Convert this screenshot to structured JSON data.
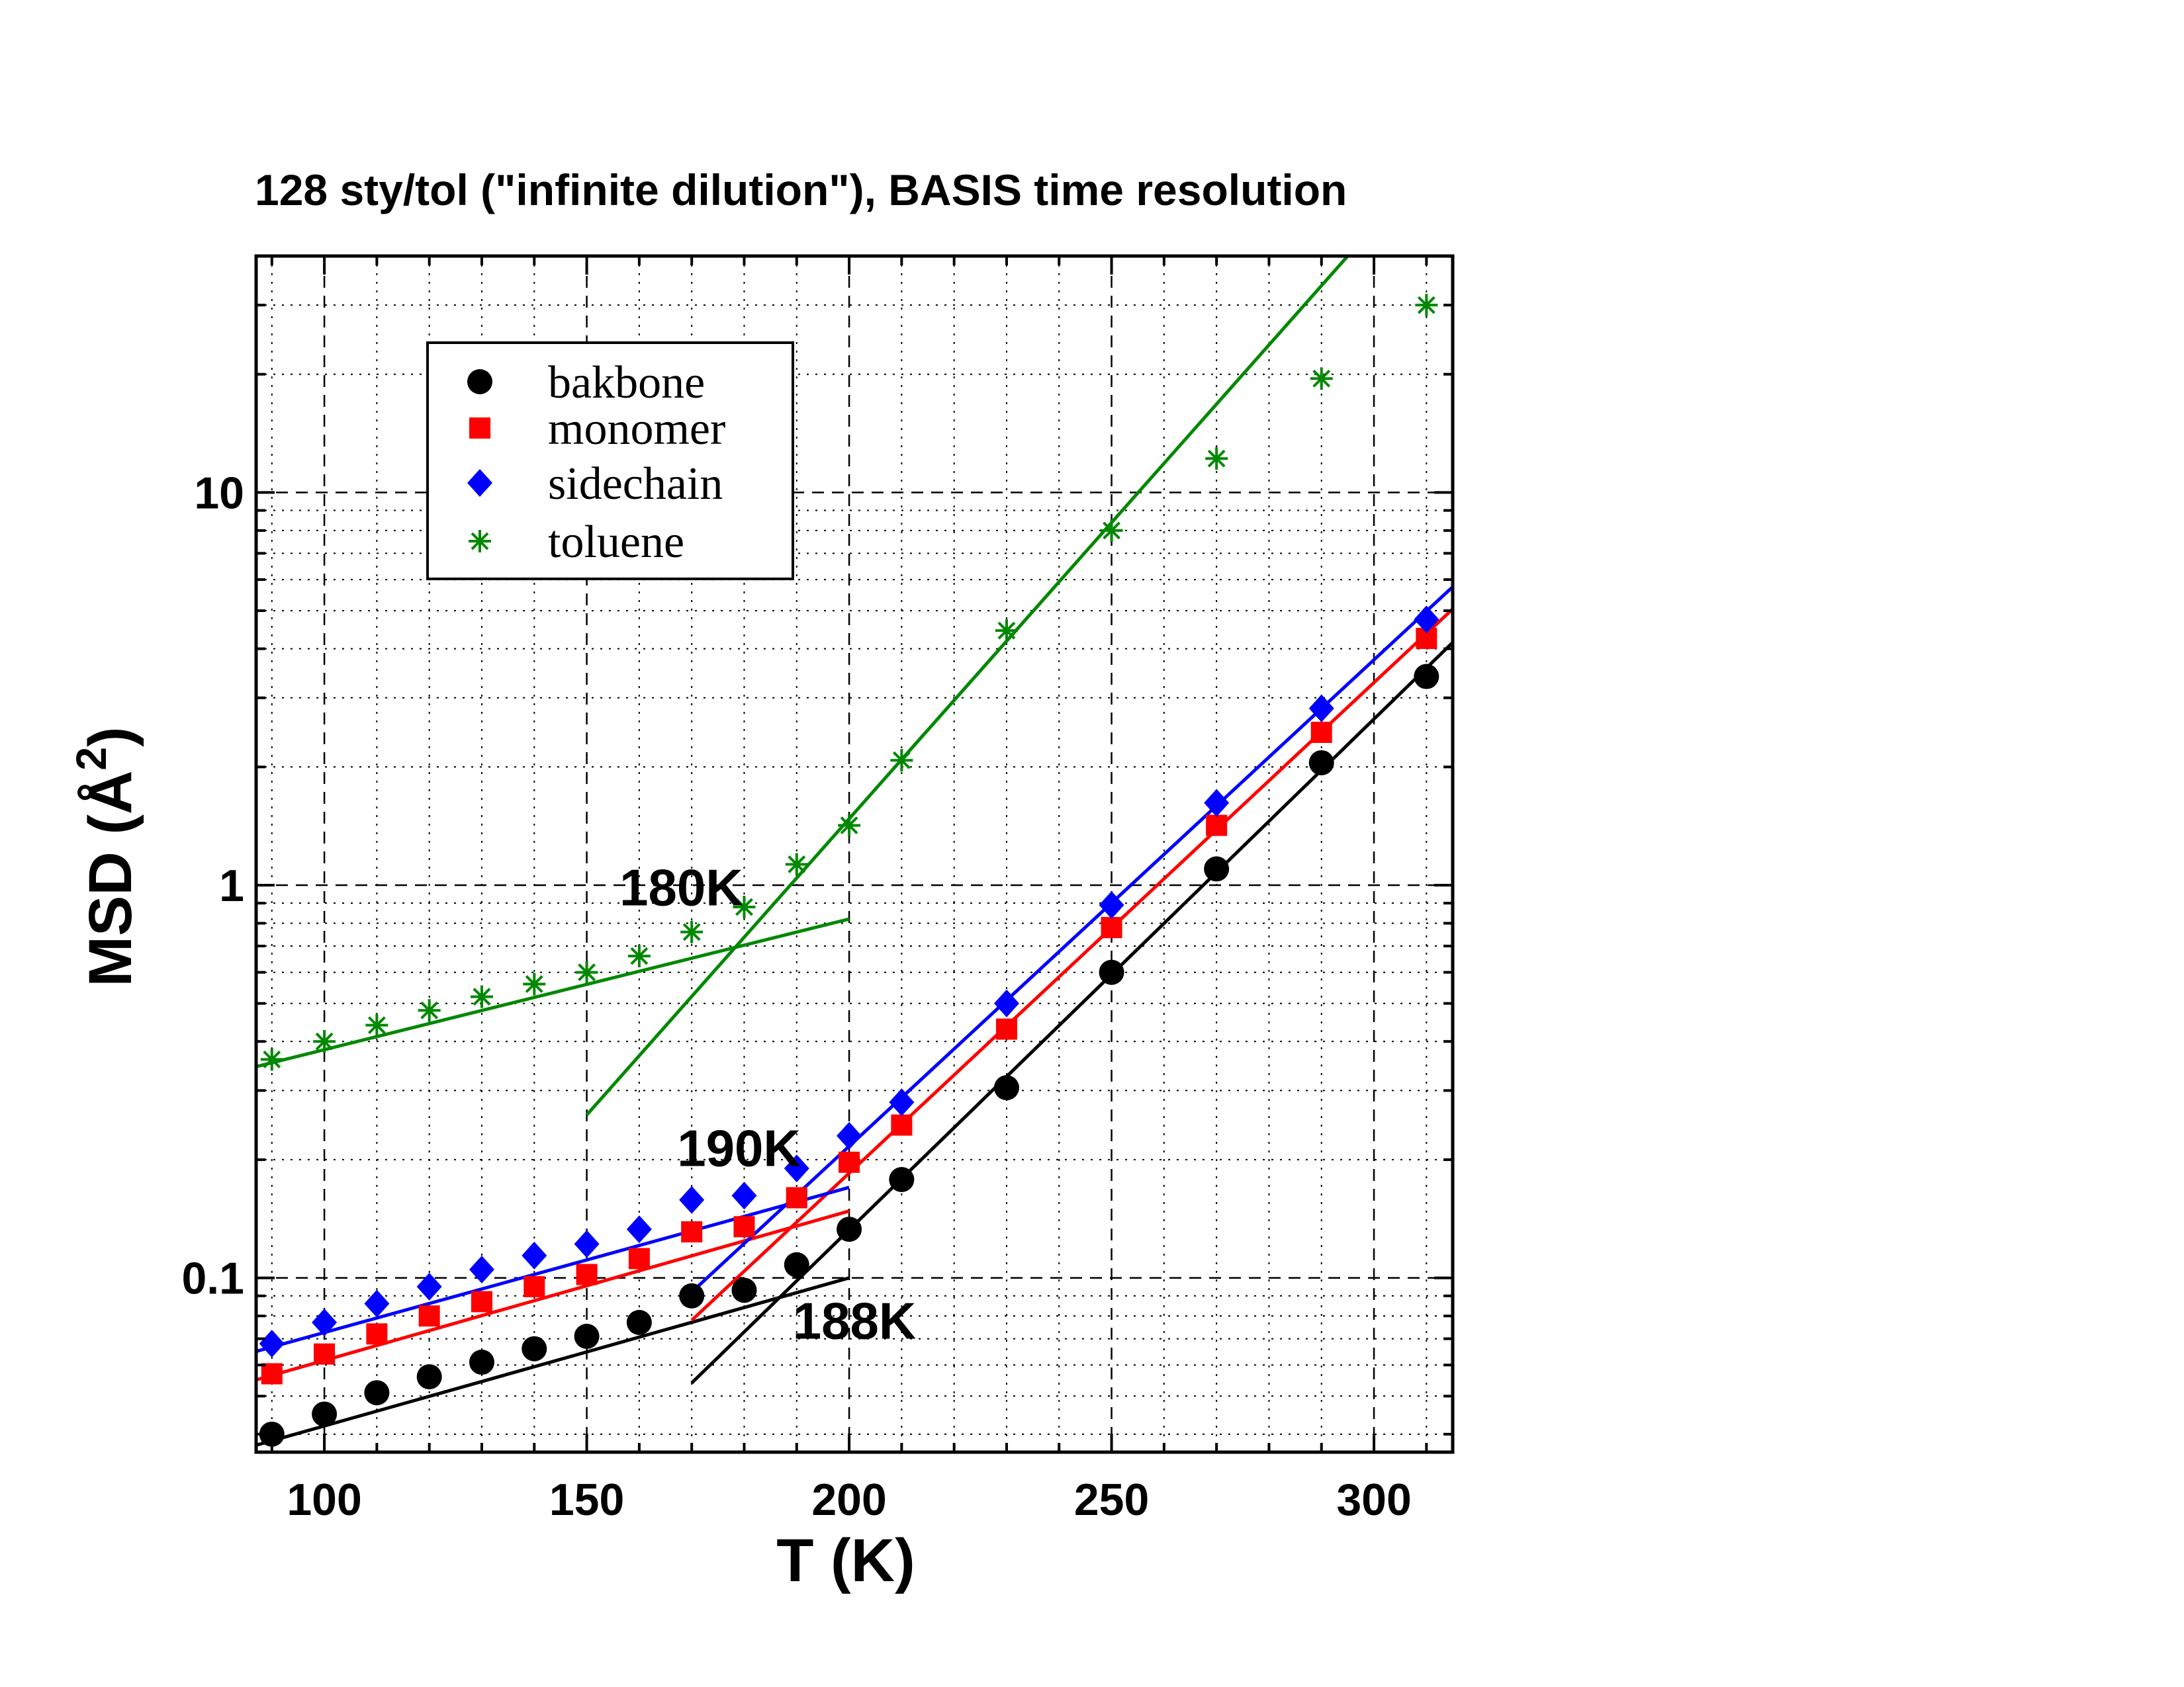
{
  "chart_data": {
    "type": "scatter",
    "title": "128 sty/tol (\"infinite dilution\"),  BASIS time resolution",
    "xlabel": "T (K)",
    "ylabel_main": "MSD (",
    "ylabel_unit": "Å",
    "ylabel_sup": "2",
    "ylabel_close": ")",
    "xlim": [
      87,
      315
    ],
    "ylim": [
      0.036,
      40
    ],
    "yscale": "log",
    "grid": true,
    "legend_position": "top-left",
    "x_ticks": [
      100,
      150,
      200,
      250,
      300
    ],
    "x_tick_labels": [
      "100",
      "150",
      "200",
      "250",
      "300"
    ],
    "y_ticks": [
      0.1,
      1,
      10
    ],
    "y_tick_labels": [
      "0.1",
      "1",
      "10"
    ],
    "series": [
      {
        "name": "bakbone",
        "color": "#000000",
        "marker": "circle",
        "x": [
          90,
          100,
          110,
          120,
          130,
          140,
          150,
          160,
          170,
          180,
          190,
          200,
          210,
          230,
          250,
          270,
          290,
          310
        ],
        "y": [
          0.04,
          0.045,
          0.051,
          0.056,
          0.061,
          0.066,
          0.071,
          0.077,
          0.09,
          0.093,
          0.108,
          0.133,
          0.178,
          0.305,
          0.6,
          1.1,
          2.05,
          3.4
        ]
      },
      {
        "name": "monomer",
        "color": "#ff0000",
        "marker": "square",
        "x": [
          90,
          100,
          110,
          120,
          130,
          140,
          150,
          160,
          170,
          180,
          190,
          200,
          210,
          230,
          250,
          270,
          290,
          310
        ],
        "y": [
          0.057,
          0.064,
          0.072,
          0.08,
          0.087,
          0.095,
          0.102,
          0.112,
          0.131,
          0.135,
          0.16,
          0.197,
          0.245,
          0.43,
          0.78,
          1.42,
          2.45,
          4.25
        ]
      },
      {
        "name": "sidechain",
        "color": "#0000ff",
        "marker": "diamond",
        "x": [
          90,
          100,
          110,
          120,
          130,
          140,
          150,
          160,
          170,
          180,
          190,
          200,
          210,
          230,
          250,
          270,
          290,
          310
        ],
        "y": [
          0.068,
          0.077,
          0.086,
          0.095,
          0.105,
          0.114,
          0.122,
          0.133,
          0.158,
          0.162,
          0.19,
          0.23,
          0.28,
          0.5,
          0.89,
          1.62,
          2.82,
          4.75
        ]
      },
      {
        "name": "toluene",
        "color": "#008800",
        "marker": "asterisk",
        "x": [
          90,
          100,
          110,
          120,
          130,
          140,
          150,
          160,
          170,
          180,
          190,
          200,
          210,
          230,
          250,
          270,
          290,
          310
        ],
        "y": [
          0.36,
          0.4,
          0.44,
          0.48,
          0.52,
          0.56,
          0.6,
          0.66,
          0.76,
          0.88,
          1.13,
          1.42,
          2.08,
          4.45,
          8.0,
          12.2,
          19.5,
          30.0
        ]
      }
    ],
    "fit_lines": [
      {
        "color": "#000000",
        "x": [
          87,
          200
        ],
        "y": [
          0.0375,
          0.1
        ]
      },
      {
        "color": "#000000",
        "x": [
          170,
          315
        ],
        "y": [
          0.054,
          4.15
        ]
      },
      {
        "color": "#ff0000",
        "x": [
          87,
          200
        ],
        "y": [
          0.055,
          0.148
        ]
      },
      {
        "color": "#ff0000",
        "x": [
          170,
          315
        ],
        "y": [
          0.078,
          5.05
        ]
      },
      {
        "color": "#0000ff",
        "x": [
          87,
          200
        ],
        "y": [
          0.065,
          0.17
        ]
      },
      {
        "color": "#0000ff",
        "x": [
          170,
          315
        ],
        "y": [
          0.092,
          5.75
        ]
      },
      {
        "color": "#008800",
        "x": [
          87,
          200
        ],
        "y": [
          0.345,
          0.82
        ]
      },
      {
        "color": "#008800",
        "x": [
          150,
          295
        ],
        "y": [
          0.26,
          40
        ]
      }
    ],
    "annotations": [
      {
        "text": "180K",
        "x": 168,
        "y": 0.99
      },
      {
        "text": "190K",
        "x": 179,
        "y": 0.215
      },
      {
        "text": "188K",
        "x": 201,
        "y": 0.078
      }
    ]
  }
}
